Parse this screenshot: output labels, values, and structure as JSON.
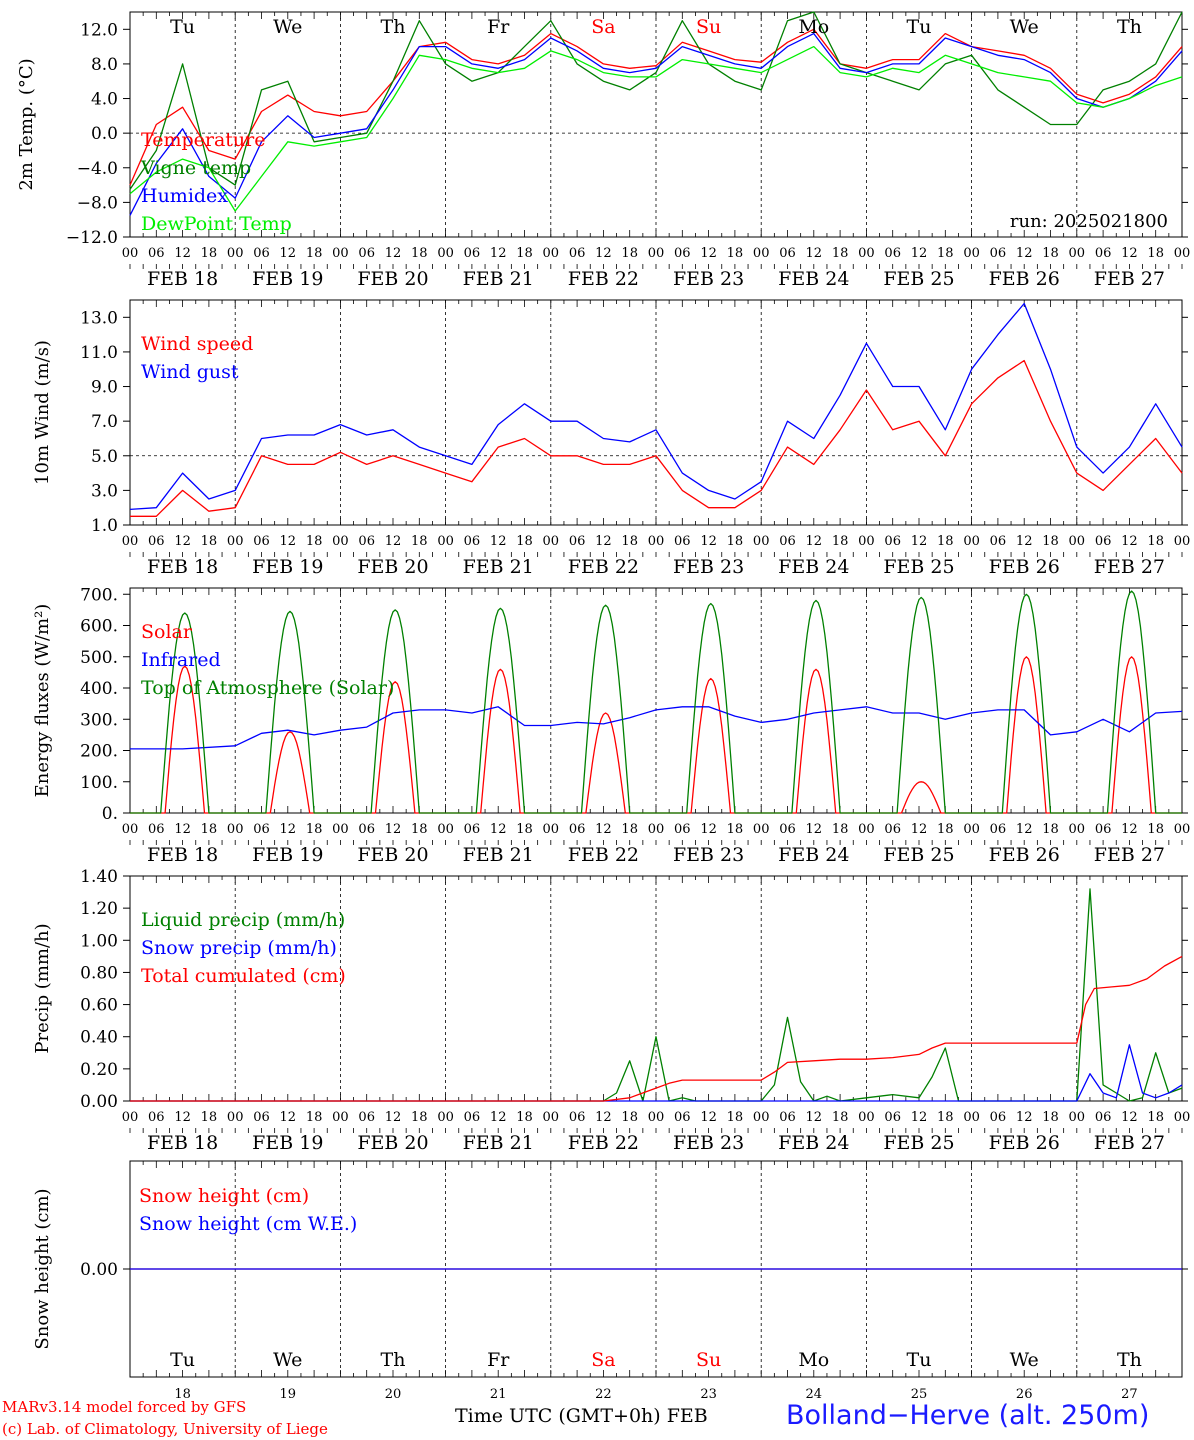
{
  "chart_data": [
    {
      "type": "line",
      "ylabel": "2m Temp. (°C)",
      "ylim": [
        -12.0,
        14.0
      ],
      "yticks": [
        "12.0",
        "8.0",
        "4.0",
        "0.0",
        "−4.0",
        "−8.0",
        "−12.0"
      ],
      "ytick_values": [
        12,
        8,
        4,
        0,
        -4,
        -8,
        -12
      ],
      "reference_line": 0,
      "run_label": "run: 2025021800",
      "legend": [
        "Temperature",
        "Vigne temp",
        "Humidex",
        "DewPoint Temp"
      ],
      "series": [
        {
          "name": "Temperature",
          "color": "#ff0000",
          "x": [
            0,
            6,
            12,
            18,
            24,
            30,
            36,
            42,
            48,
            54,
            60,
            66,
            72,
            78,
            84,
            90,
            96,
            102,
            108,
            114,
            120,
            126,
            132,
            138,
            144,
            150,
            156,
            162,
            168,
            174,
            180,
            186,
            192,
            198,
            204,
            210,
            216,
            222,
            228,
            234,
            240
          ],
          "values": [
            -6.0,
            1.0,
            3.0,
            -2.0,
            -3.0,
            2.5,
            4.4,
            2.5,
            2.0,
            2.5,
            6.0,
            10.0,
            10.5,
            8.5,
            8.0,
            9.0,
            11.5,
            10.0,
            8.0,
            7.5,
            7.8,
            10.5,
            9.5,
            8.5,
            8.2,
            10.5,
            12.0,
            8.0,
            7.5,
            8.5,
            8.5,
            11.5,
            10.0,
            9.5,
            9.0,
            7.5,
            4.5,
            3.5,
            4.5,
            6.5,
            10.0
          ]
        },
        {
          "name": "Vigne temp",
          "color": "#008000",
          "x": [
            0,
            6,
            12,
            18,
            24,
            30,
            36,
            42,
            48,
            54,
            60,
            66,
            72,
            78,
            84,
            90,
            96,
            102,
            108,
            114,
            120,
            126,
            132,
            138,
            144,
            150,
            156,
            162,
            168,
            174,
            180,
            186,
            192,
            198,
            204,
            210,
            216,
            222,
            228,
            234,
            240
          ],
          "values": [
            -6.5,
            -2.0,
            8.0,
            -4.0,
            -6.0,
            5.0,
            6.0,
            -1.0,
            -0.5,
            0.0,
            6.0,
            13.0,
            8.0,
            6.0,
            7.0,
            10.0,
            13.0,
            8.0,
            6.0,
            5.0,
            7.0,
            13.0,
            8.0,
            6.0,
            5.0,
            13.0,
            14.0,
            8.0,
            7.0,
            6.0,
            5.0,
            8.0,
            9.0,
            5.0,
            3.0,
            1.0,
            1.0,
            5.0,
            6.0,
            8.0,
            14.0
          ]
        },
        {
          "name": "Humidex",
          "color": "#0000ff",
          "x": [
            0,
            6,
            12,
            18,
            24,
            30,
            36,
            42,
            48,
            54,
            60,
            66,
            72,
            78,
            84,
            90,
            96,
            102,
            108,
            114,
            120,
            126,
            132,
            138,
            144,
            150,
            156,
            162,
            168,
            174,
            180,
            186,
            192,
            198,
            204,
            210,
            216,
            222,
            228,
            234,
            240
          ],
          "values": [
            -9.5,
            -3.5,
            0.5,
            -5.0,
            -7.5,
            -1.0,
            2.0,
            -0.5,
            0.0,
            0.5,
            5.0,
            10.0,
            10.0,
            8.0,
            7.5,
            8.5,
            11.0,
            9.5,
            7.5,
            7.0,
            7.5,
            10.0,
            9.0,
            8.0,
            7.5,
            10.0,
            11.5,
            7.5,
            7.0,
            8.0,
            8.0,
            11.0,
            10.0,
            9.0,
            8.5,
            7.0,
            4.0,
            3.0,
            4.0,
            6.0,
            9.5
          ]
        },
        {
          "name": "DewPoint Temp",
          "color": "#00ee00",
          "x": [
            0,
            6,
            12,
            18,
            24,
            30,
            36,
            42,
            48,
            54,
            60,
            66,
            72,
            78,
            84,
            90,
            96,
            102,
            108,
            114,
            120,
            126,
            132,
            138,
            144,
            150,
            156,
            162,
            168,
            174,
            180,
            186,
            192,
            198,
            204,
            210,
            216,
            222,
            228,
            234,
            240
          ],
          "values": [
            -7.0,
            -4.5,
            -3.0,
            -4.0,
            -9.0,
            -5.0,
            -1.0,
            -1.5,
            -1.0,
            -0.5,
            4.0,
            9.0,
            8.5,
            7.5,
            7.0,
            7.5,
            9.5,
            8.5,
            7.0,
            6.5,
            6.5,
            8.5,
            8.0,
            7.5,
            7.0,
            8.5,
            10.0,
            7.0,
            6.5,
            7.5,
            7.0,
            9.0,
            8.0,
            7.0,
            6.5,
            6.0,
            3.5,
            3.0,
            4.0,
            5.5,
            6.5
          ]
        }
      ]
    },
    {
      "type": "line",
      "ylabel": "10m Wind (m/s)",
      "ylim": [
        1.0,
        14.0
      ],
      "yticks": [
        "13.0",
        "11.0",
        "9.0",
        "7.0",
        "5.0",
        "3.0",
        "1.0"
      ],
      "ytick_values": [
        13,
        11,
        9,
        7,
        5,
        3,
        1
      ],
      "reference_line": 5,
      "legend": [
        "Wind speed",
        "Wind gust"
      ],
      "series": [
        {
          "name": "Wind speed",
          "color": "#ff0000",
          "x": [
            0,
            6,
            12,
            18,
            24,
            30,
            36,
            42,
            48,
            54,
            60,
            66,
            72,
            78,
            84,
            90,
            96,
            102,
            108,
            114,
            120,
            126,
            132,
            138,
            144,
            150,
            156,
            162,
            168,
            174,
            180,
            186,
            192,
            198,
            204,
            210,
            216,
            222,
            228,
            234,
            240
          ],
          "values": [
            1.5,
            1.5,
            3.0,
            1.8,
            2.0,
            5.0,
            4.5,
            4.5,
            5.2,
            4.5,
            5.0,
            4.5,
            4.0,
            3.5,
            5.5,
            6.0,
            5.0,
            5.0,
            4.5,
            4.5,
            5.0,
            3.0,
            2.0,
            2.0,
            3.0,
            5.5,
            4.5,
            6.5,
            8.8,
            6.5,
            7.0,
            5.0,
            8.0,
            9.5,
            10.5,
            7.0,
            4.0,
            3.0,
            4.5,
            6.0,
            4.0
          ]
        },
        {
          "name": "Wind gust",
          "color": "#0000ff",
          "x": [
            0,
            6,
            12,
            18,
            24,
            30,
            36,
            42,
            48,
            54,
            60,
            66,
            72,
            78,
            84,
            90,
            96,
            102,
            108,
            114,
            120,
            126,
            132,
            138,
            144,
            150,
            156,
            162,
            168,
            174,
            180,
            186,
            192,
            198,
            204,
            210,
            216,
            222,
            228,
            234,
            240
          ],
          "values": [
            1.9,
            2.0,
            4.0,
            2.5,
            3.0,
            6.0,
            6.2,
            6.2,
            6.8,
            6.2,
            6.5,
            5.5,
            5.0,
            4.5,
            6.8,
            8.0,
            7.0,
            7.0,
            6.0,
            5.8,
            6.5,
            4.0,
            3.0,
            2.5,
            3.5,
            7.0,
            6.0,
            8.5,
            11.5,
            9.0,
            9.0,
            6.5,
            10.0,
            12.0,
            13.8,
            10.0,
            5.5,
            4.0,
            5.5,
            8.0,
            5.5
          ]
        }
      ]
    },
    {
      "type": "line",
      "ylabel": "Energy fluxes (W/m²)",
      "ylim": [
        0,
        720
      ],
      "yticks": [
        "700.",
        "600.",
        "500.",
        "400.",
        "300.",
        "200.",
        "100.",
        "0."
      ],
      "ytick_values": [
        700,
        600,
        500,
        400,
        300,
        200,
        100,
        0
      ],
      "legend": [
        "Solar",
        "Infrared",
        "Top of Atmosphere (Solar)"
      ],
      "series": [
        {
          "name": "Solar",
          "color": "#ff0000",
          "day_peaks": [
            470,
            260,
            420,
            460,
            320,
            430,
            460,
            100,
            500,
            500
          ]
        },
        {
          "name": "Infrared",
          "color": "#0000ff",
          "x": [
            0,
            12,
            24,
            30,
            36,
            42,
            48,
            54,
            60,
            66,
            72,
            78,
            84,
            90,
            96,
            102,
            108,
            114,
            120,
            126,
            132,
            138,
            144,
            150,
            156,
            162,
            168,
            174,
            180,
            186,
            192,
            198,
            204,
            210,
            216,
            222,
            228,
            234,
            240
          ],
          "values": [
            205,
            205,
            215,
            255,
            265,
            250,
            265,
            275,
            320,
            330,
            330,
            320,
            340,
            280,
            280,
            290,
            285,
            305,
            330,
            340,
            340,
            310,
            290,
            300,
            320,
            330,
            340,
            320,
            320,
            300,
            320,
            330,
            330,
            250,
            260,
            300,
            260,
            320,
            325
          ]
        },
        {
          "name": "Top of Atmosphere (Solar)",
          "color": "#008000",
          "day_peaks": [
            640,
            645,
            650,
            655,
            665,
            670,
            680,
            690,
            700,
            710
          ]
        }
      ]
    },
    {
      "type": "line",
      "ylabel": "Precip (mm/h)",
      "ylim": [
        0,
        1.4
      ],
      "yticks": [
        "1.40",
        "1.20",
        "1.00",
        "0.80",
        "0.60",
        "0.40",
        "0.20",
        "0.00"
      ],
      "ytick_values": [
        1.4,
        1.2,
        1.0,
        0.8,
        0.6,
        0.4,
        0.2,
        0
      ],
      "legend": [
        "Liquid precip (mm/h)",
        "Snow precip (mm/h)",
        "Total cumulated (cm)"
      ],
      "series": [
        {
          "name": "Liquid precip (mm/h)",
          "color": "#008000",
          "x": [
            0,
            108,
            111,
            114,
            117,
            120,
            123,
            126,
            129,
            132,
            144,
            147,
            150,
            153,
            156,
            159,
            162,
            168,
            174,
            180,
            183,
            186,
            189,
            192,
            200,
            216,
            219,
            222,
            225,
            228,
            231,
            234,
            237,
            240
          ],
          "values": [
            0,
            0,
            0.05,
            0.25,
            0.0,
            0.4,
            0.0,
            0.02,
            0.0,
            0,
            0,
            0.1,
            0.52,
            0.12,
            0.0,
            0.03,
            0,
            0.02,
            0.04,
            0.02,
            0.15,
            0.33,
            0.0,
            0,
            0,
            0,
            1.32,
            0.1,
            0.05,
            0.0,
            0.02,
            0.3,
            0.05,
            0.08
          ]
        },
        {
          "name": "Snow precip (mm/h)",
          "color": "#0000ff",
          "x": [
            0,
            216,
            219,
            222,
            225,
            228,
            231,
            234,
            237,
            240
          ],
          "values": [
            0,
            0,
            0.17,
            0.05,
            0.02,
            0.35,
            0.05,
            0.02,
            0.05,
            0.1
          ]
        },
        {
          "name": "Total cumulated (cm)",
          "color": "#ff0000",
          "x": [
            0,
            108,
            114,
            120,
            123,
            126,
            144,
            147,
            150,
            156,
            162,
            168,
            174,
            180,
            183,
            186,
            192,
            200,
            216,
            218,
            220,
            224,
            228,
            232,
            236,
            240
          ],
          "values": [
            0,
            0,
            0.02,
            0.08,
            0.11,
            0.13,
            0.13,
            0.18,
            0.24,
            0.25,
            0.26,
            0.26,
            0.27,
            0.29,
            0.33,
            0.36,
            0.36,
            0.36,
            0.36,
            0.6,
            0.7,
            0.71,
            0.72,
            0.76,
            0.84,
            0.9
          ]
        }
      ]
    },
    {
      "type": "line",
      "ylabel": "Snow height (cm)",
      "yticks": [
        "0.00"
      ],
      "ytick_values": [
        0
      ],
      "legend": [
        "Snow height (cm)",
        "Snow height (cm W.E.)"
      ],
      "series": [
        {
          "name": "Snow height (cm)",
          "color": "#ff0000",
          "x": [
            0,
            240
          ],
          "values": [
            0,
            0
          ]
        },
        {
          "name": "Snow height (cm W.E.)",
          "color": "#0000ff",
          "x": [
            0,
            240
          ],
          "values": [
            0,
            0
          ]
        }
      ]
    }
  ],
  "time_axis": {
    "hour_labels": [
      "00",
      "06",
      "12",
      "18"
    ],
    "date_labels": [
      "FEB 18",
      "FEB 19",
      "FEB 20",
      "FEB 21",
      "FEB 22",
      "FEB 23",
      "FEB 24",
      "FEB 25",
      "FEB 26",
      "FEB 27"
    ],
    "weekdays": [
      "Tu",
      "We",
      "Th",
      "Fr",
      "Sa",
      "Su",
      "Mo",
      "Tu",
      "We",
      "Th"
    ],
    "weekend_color": "#ff0000",
    "day_numbers": [
      "18",
      "19",
      "20",
      "21",
      "22",
      "23",
      "24",
      "25",
      "26",
      "27"
    ],
    "title": "Time UTC (GMT+0h) FEB"
  },
  "footer": {
    "model_line": "MARv3.14 model forced by GFS",
    "credit_line": "(c) Lab. of Climatology, University of Liege",
    "station": "Bolland−Herve (alt. 250m)"
  }
}
